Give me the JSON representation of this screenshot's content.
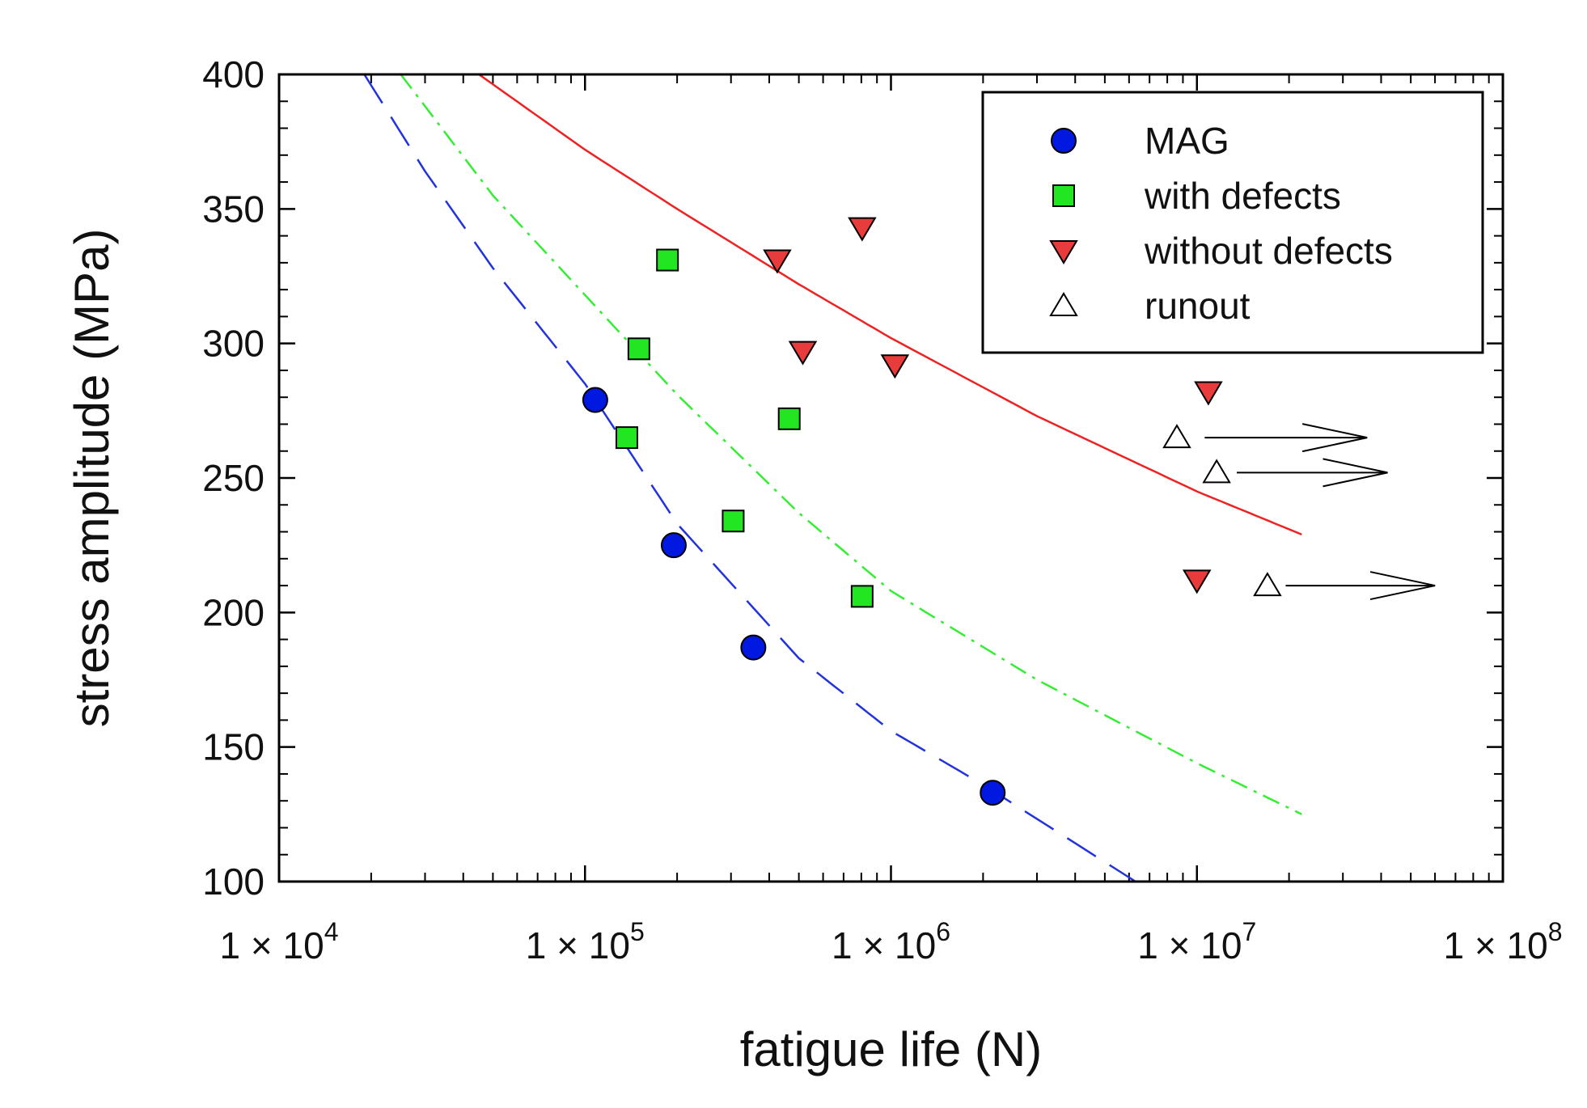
{
  "chart_data": {
    "type": "scatter",
    "xlabel": "fatigue life (N)",
    "ylabel": "stress amplitude (MPa)",
    "x_scale": "log",
    "xlim": [
      10000,
      100000000
    ],
    "ylim": [
      100,
      400
    ],
    "x_ticks": [
      {
        "value": 10000,
        "base": "1 × 10",
        "exp": "4"
      },
      {
        "value": 100000,
        "base": "1 × 10",
        "exp": "5"
      },
      {
        "value": 1000000,
        "base": "1 × 10",
        "exp": "6"
      },
      {
        "value": 10000000,
        "base": "1 × 10",
        "exp": "7"
      },
      {
        "value": 100000000,
        "base": "1 × 10",
        "exp": "8"
      }
    ],
    "y_ticks": [
      {
        "value": 100,
        "label": "100"
      },
      {
        "value": 150,
        "label": "150"
      },
      {
        "value": 200,
        "label": "200"
      },
      {
        "value": 250,
        "label": "250"
      },
      {
        "value": 300,
        "label": "300"
      },
      {
        "value": 350,
        "label": "350"
      },
      {
        "value": 400,
        "label": "400"
      }
    ],
    "legend_position": "top-right",
    "series": [
      {
        "name": "MAG",
        "marker": "circle",
        "color": "#0018e0",
        "points": [
          [
            108000,
            279
          ],
          [
            195000,
            225
          ],
          [
            355000,
            187
          ],
          [
            2150000,
            133
          ]
        ]
      },
      {
        "name": "with defects",
        "marker": "square",
        "color": "#22e622",
        "points": [
          [
            186000,
            331
          ],
          [
            150000,
            298
          ],
          [
            137000,
            265
          ],
          [
            465000,
            272
          ],
          [
            305000,
            234
          ],
          [
            805000,
            206
          ]
        ]
      },
      {
        "name": "without defects",
        "marker": "triangle-down",
        "color": "#e83c3c",
        "points": [
          [
            425000,
            331
          ],
          [
            805000,
            343
          ],
          [
            515000,
            297
          ],
          [
            1030000,
            292
          ],
          [
            10900000,
            282
          ],
          [
            10000000,
            212
          ]
        ]
      },
      {
        "name": "runout",
        "marker": "triangle-up",
        "color": "#ffffff",
        "points": [
          [
            8600000,
            265
          ],
          [
            11600000,
            252
          ],
          [
            17000000,
            210
          ]
        ]
      }
    ],
    "runout_arrows": [
      {
        "from": 10600000,
        "to": 36000000,
        "y": 265
      },
      {
        "from": 13500000,
        "to": 42000000,
        "y": 252
      },
      {
        "from": 19500000,
        "to": 60000000,
        "y": 210
      }
    ],
    "fit_curves": [
      {
        "name": "MAG fit",
        "color": "#2233dd",
        "style": "dashed",
        "points": [
          [
            19000,
            400
          ],
          [
            30000,
            364
          ],
          [
            50000,
            328
          ],
          [
            100000,
            285
          ],
          [
            200000,
            233
          ],
          [
            500000,
            183
          ],
          [
            1000000,
            156
          ],
          [
            2000000,
            136
          ],
          [
            6300000,
            100
          ]
        ]
      },
      {
        "name": "with defects fit",
        "color": "#33ee33",
        "style": "dash-dot",
        "points": [
          [
            25000,
            400
          ],
          [
            50000,
            355
          ],
          [
            100000,
            318
          ],
          [
            200000,
            281
          ],
          [
            500000,
            237
          ],
          [
            1000000,
            208
          ],
          [
            3000000,
            175
          ],
          [
            10000000,
            144
          ],
          [
            22000000,
            125
          ]
        ]
      },
      {
        "name": "without defects fit",
        "color": "#ee2222",
        "style": "solid",
        "points": [
          [
            45000,
            400
          ],
          [
            100000,
            372
          ],
          [
            200000,
            350
          ],
          [
            500000,
            322
          ],
          [
            1000000,
            302
          ],
          [
            3000000,
            273
          ],
          [
            10000000,
            245
          ],
          [
            22000000,
            229
          ]
        ]
      }
    ]
  }
}
